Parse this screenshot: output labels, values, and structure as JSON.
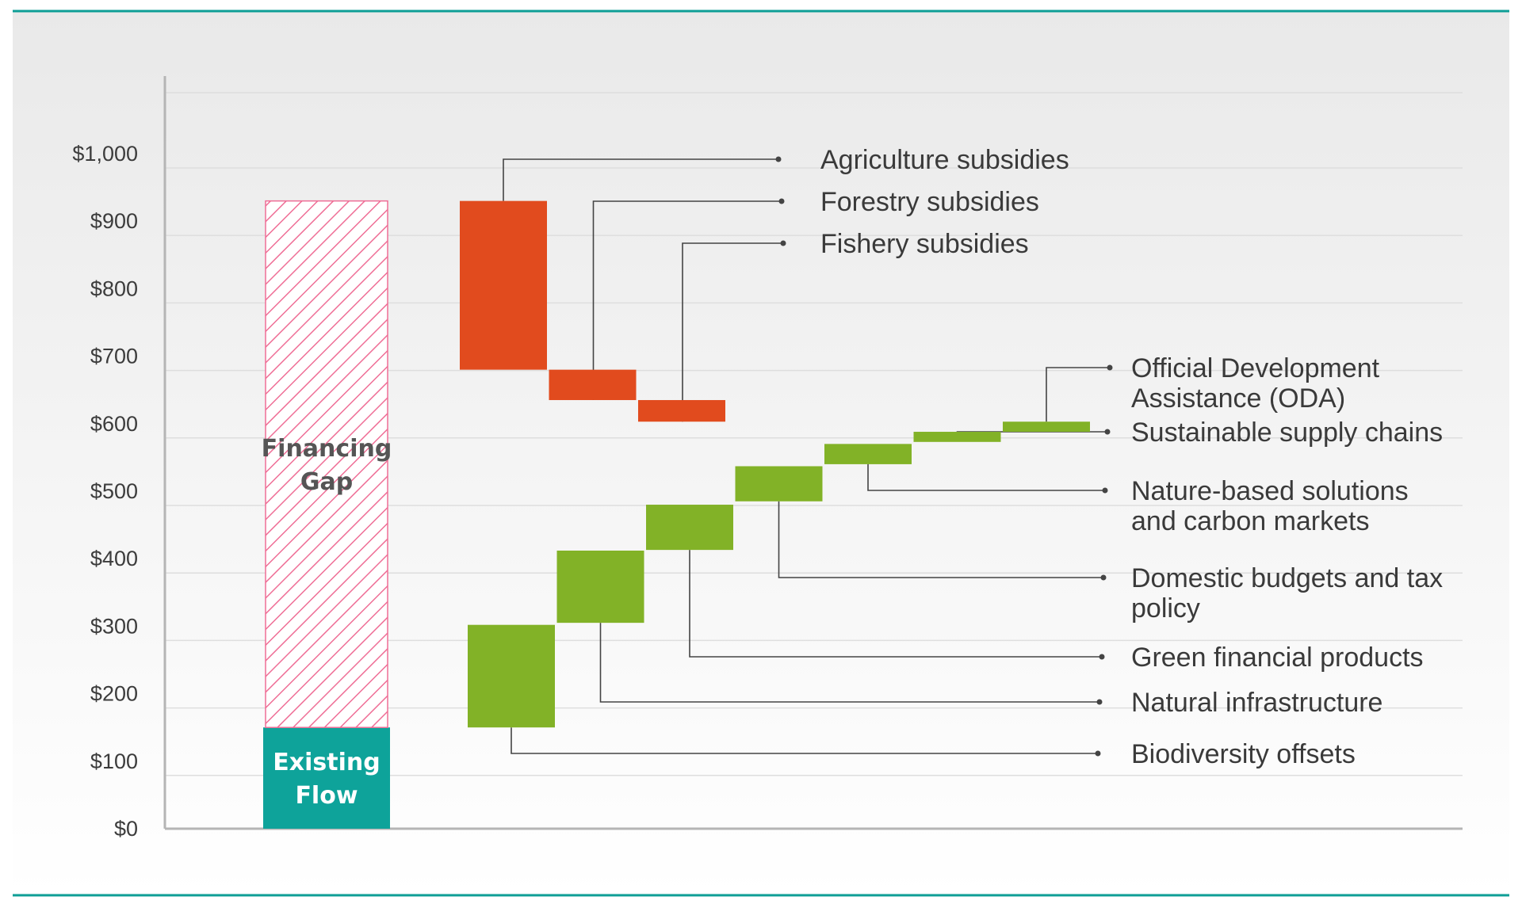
{
  "chart_data": {
    "type": "bar",
    "subtype": "waterfall",
    "title": "",
    "xlabel": "",
    "ylabel": "",
    "ylim": [
      0,
      1000
    ],
    "y_tick_values": [
      0,
      100,
      200,
      300,
      400,
      500,
      600,
      700,
      800,
      900,
      1000
    ],
    "y_tick_labels": [
      "$0",
      "$100",
      "$200",
      "$300",
      "$400",
      "$500",
      "$600",
      "$700",
      "$800",
      "$900",
      "$1,000"
    ],
    "grid": true,
    "stacked_bar": {
      "segments": [
        {
          "label_lines": [
            "Existing",
            "Flow"
          ],
          "low": 0,
          "high": 150,
          "color": "#0ea39a",
          "style": "solid"
        },
        {
          "label_lines": [
            "Financing",
            "Gap"
          ],
          "low": 150,
          "high": 930,
          "color": "#ef6e96",
          "style": "hatched"
        }
      ]
    },
    "series": [
      {
        "group": "subsidies",
        "color": "#e14b1e",
        "items": [
          {
            "label": "Agriculture subsidies",
            "low": 680,
            "high": 930
          },
          {
            "label": "Forestry subsidies",
            "low": 635,
            "high": 680
          },
          {
            "label": "Fishery subsidies",
            "low": 603,
            "high": 635
          }
        ]
      },
      {
        "group": "sources",
        "color": "#82b227",
        "items": [
          {
            "label": "Biodiversity offsets",
            "low": 150,
            "high": 302
          },
          {
            "label": "Natural infrastructure",
            "low": 305,
            "high": 412
          },
          {
            "label": "Green financial products",
            "low": 413,
            "high": 480
          },
          {
            "label": "Domestic budgets and tax policy",
            "low": 485,
            "high": 537
          },
          {
            "label": "Nature-based solutions and carbon markets",
            "low": 540,
            "high": 570
          },
          {
            "label": "Sustainable supply chains",
            "low": 573,
            "high": 588
          },
          {
            "label": "Official Development Assistance (ODA)",
            "low": 588,
            "high": 603
          }
        ]
      }
    ],
    "label_lines": {
      "Agriculture subsidies": [
        "Agriculture subsidies"
      ],
      "Forestry subsidies": [
        "Forestry subsidies"
      ],
      "Fishery subsidies": [
        "Fishery subsidies"
      ],
      "Sustainable supply chains": [
        "Sustainable supply chains"
      ],
      "Official Development Assistance (ODA)": [
        "Official Development",
        "Assistance (ODA)"
      ],
      "Nature-based solutions and carbon markets": [
        "Nature-based solutions",
        "and carbon markets"
      ],
      "Domestic budgets and tax policy": [
        "Domestic budgets and tax",
        "policy"
      ],
      "Green financial products": [
        "Green financial products"
      ],
      "Natural infrastructure": [
        "Natural infrastructure"
      ],
      "Biodiversity offsets": [
        "Biodiversity offsets"
      ]
    },
    "colors": {
      "frame_rule": "#0e9e96",
      "axis": "#b5b5b5",
      "grid": "#dedede",
      "leader": "#444444"
    }
  }
}
